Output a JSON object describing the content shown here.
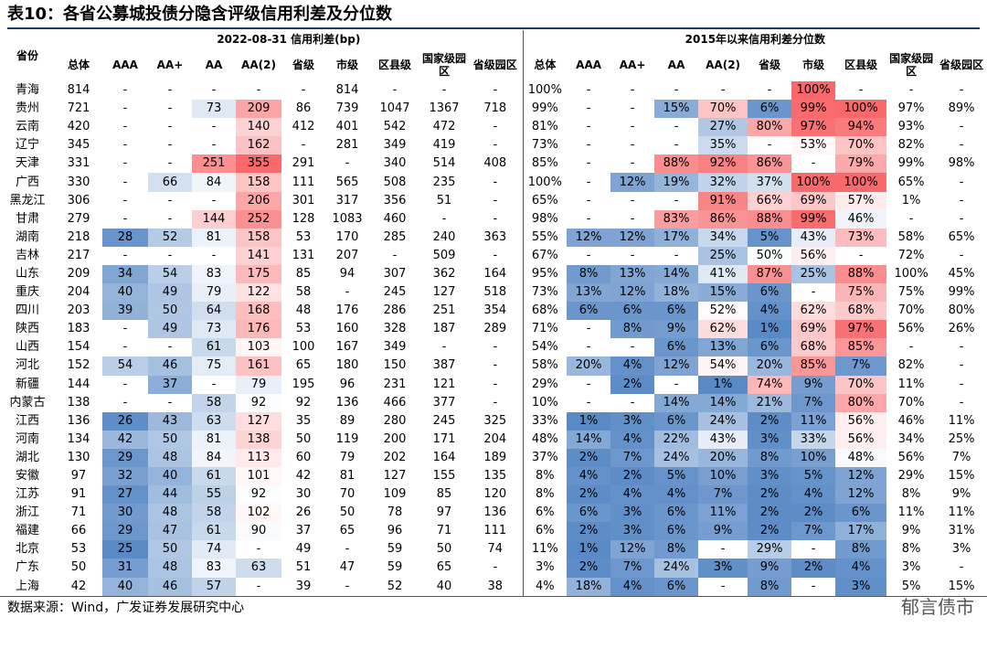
{
  "title": "表10：各省公募城投债分隐含评级信用利差及分位数",
  "table": {
    "corner": "省份",
    "group_headers": [
      "2022-08-31 信用利差(bp)",
      "2015年以来信用利差分位数"
    ],
    "columns": [
      "总体",
      "AAA",
      "AA+",
      "AA",
      "AA(2)",
      "省级",
      "市级",
      "区县级",
      "国家级园区",
      "省级园区",
      "总体",
      "AAA",
      "AA+",
      "AA",
      "AA(2)",
      "省级",
      "市级",
      "区县级",
      "国家级园区",
      "省级园区"
    ],
    "rows": [
      {
        "province": "青海",
        "cells": [
          "814",
          "-",
          "-",
          "-",
          "-",
          "-",
          "814",
          "-",
          "-",
          "-",
          "100%",
          "-",
          "-",
          "-",
          "-",
          "-",
          "100%",
          "-",
          "-",
          "-"
        ]
      },
      {
        "province": "贵州",
        "cells": [
          "721",
          "-",
          "-",
          "73",
          "209",
          "86",
          "739",
          "1047",
          "1367",
          "718",
          "99%",
          "-",
          "-",
          "15%",
          "70%",
          "6%",
          "99%",
          "100%",
          "97%",
          "89%"
        ]
      },
      {
        "province": "云南",
        "cells": [
          "420",
          "-",
          "-",
          "-",
          "140",
          "412",
          "401",
          "542",
          "472",
          "-",
          "81%",
          "-",
          "-",
          "-",
          "27%",
          "80%",
          "97%",
          "94%",
          "93%",
          "-"
        ]
      },
      {
        "province": "辽宁",
        "cells": [
          "345",
          "-",
          "-",
          "-",
          "162",
          "-",
          "281",
          "349",
          "419",
          "-",
          "73%",
          "-",
          "-",
          "-",
          "35%",
          "-",
          "53%",
          "70%",
          "82%",
          "-"
        ]
      },
      {
        "province": "天津",
        "cells": [
          "331",
          "-",
          "-",
          "251",
          "355",
          "291",
          "-",
          "340",
          "514",
          "408",
          "85%",
          "-",
          "-",
          "88%",
          "92%",
          "86%",
          "-",
          "79%",
          "99%",
          "98%"
        ]
      },
      {
        "province": "广西",
        "cells": [
          "330",
          "-",
          "66",
          "84",
          "158",
          "111",
          "565",
          "508",
          "235",
          "-",
          "100%",
          "-",
          "12%",
          "19%",
          "32%",
          "37%",
          "100%",
          "100%",
          "65%",
          "-"
        ]
      },
      {
        "province": "黑龙江",
        "cells": [
          "306",
          "-",
          "-",
          "-",
          "206",
          "301",
          "317",
          "356",
          "51",
          "-",
          "65%",
          "-",
          "-",
          "-",
          "91%",
          "66%",
          "69%",
          "57%",
          "1%",
          "-"
        ]
      },
      {
        "province": "甘肃",
        "cells": [
          "279",
          "-",
          "-",
          "144",
          "252",
          "128",
          "1083",
          "460",
          "-",
          "-",
          "98%",
          "-",
          "-",
          "83%",
          "86%",
          "88%",
          "99%",
          "46%",
          "-",
          "-"
        ]
      },
      {
        "province": "湖南",
        "cells": [
          "218",
          "28",
          "52",
          "81",
          "158",
          "53",
          "170",
          "285",
          "240",
          "363",
          "55%",
          "12%",
          "12%",
          "17%",
          "34%",
          "5%",
          "43%",
          "73%",
          "58%",
          "65%"
        ]
      },
      {
        "province": "吉林",
        "cells": [
          "217",
          "-",
          "-",
          "-",
          "141",
          "131",
          "207",
          "-",
          "509",
          "-",
          "67%",
          "-",
          "-",
          "-",
          "25%",
          "50%",
          "56%",
          "-",
          "72%",
          "-"
        ]
      },
      {
        "province": "山东",
        "cells": [
          "209",
          "34",
          "54",
          "83",
          "175",
          "85",
          "94",
          "307",
          "362",
          "164",
          "95%",
          "8%",
          "13%",
          "14%",
          "41%",
          "87%",
          "25%",
          "88%",
          "100%",
          "45%"
        ]
      },
      {
        "province": "重庆",
        "cells": [
          "204",
          "40",
          "49",
          "79",
          "122",
          "58",
          "-",
          "245",
          "127",
          "518",
          "73%",
          "13%",
          "12%",
          "18%",
          "15%",
          "6%",
          "-",
          "75%",
          "75%",
          "99%"
        ]
      },
      {
        "province": "四川",
        "cells": [
          "203",
          "39",
          "50",
          "64",
          "168",
          "48",
          "176",
          "286",
          "251",
          "354",
          "68%",
          "6%",
          "6%",
          "6%",
          "52%",
          "4%",
          "62%",
          "68%",
          "70%",
          "80%"
        ]
      },
      {
        "province": "陕西",
        "cells": [
          "183",
          "-",
          "49",
          "73",
          "176",
          "53",
          "160",
          "328",
          "187",
          "289",
          "71%",
          "-",
          "8%",
          "9%",
          "62%",
          "1%",
          "69%",
          "97%",
          "56%",
          "26%"
        ]
      },
      {
        "province": "山西",
        "cells": [
          "154",
          "-",
          "-",
          "61",
          "103",
          "100",
          "167",
          "349",
          "-",
          "-",
          "54%",
          "-",
          "-",
          "6%",
          "13%",
          "6%",
          "68%",
          "85%",
          "-",
          "-"
        ]
      },
      {
        "province": "河北",
        "cells": [
          "152",
          "54",
          "46",
          "75",
          "161",
          "65",
          "180",
          "150",
          "387",
          "-",
          "58%",
          "20%",
          "4%",
          "12%",
          "54%",
          "20%",
          "85%",
          "7%",
          "82%",
          "-"
        ]
      },
      {
        "province": "新疆",
        "cells": [
          "144",
          "-",
          "37",
          "-",
          "79",
          "195",
          "96",
          "231",
          "121",
          "-",
          "29%",
          "-",
          "2%",
          "-",
          "1%",
          "74%",
          "9%",
          "70%",
          "11%",
          "-"
        ]
      },
      {
        "province": "内蒙古",
        "cells": [
          "138",
          "-",
          "-",
          "58",
          "92",
          "92",
          "136",
          "466",
          "377",
          "-",
          "10%",
          "-",
          "-",
          "14%",
          "14%",
          "21%",
          "7%",
          "80%",
          "70%",
          "-"
        ]
      },
      {
        "province": "江西",
        "cells": [
          "136",
          "26",
          "43",
          "63",
          "127",
          "35",
          "89",
          "280",
          "245",
          "325",
          "33%",
          "1%",
          "3%",
          "6%",
          "24%",
          "2%",
          "11%",
          "56%",
          "46%",
          "11%"
        ]
      },
      {
        "province": "河南",
        "cells": [
          "134",
          "42",
          "50",
          "81",
          "138",
          "50",
          "119",
          "200",
          "171",
          "204",
          "48%",
          "14%",
          "4%",
          "22%",
          "43%",
          "3%",
          "33%",
          "56%",
          "34%",
          "25%"
        ]
      },
      {
        "province": "湖北",
        "cells": [
          "130",
          "29",
          "48",
          "84",
          "113",
          "60",
          "79",
          "202",
          "164",
          "189",
          "37%",
          "2%",
          "7%",
          "24%",
          "20%",
          "8%",
          "10%",
          "48%",
          "56%",
          "7%"
        ]
      },
      {
        "province": "安徽",
        "cells": [
          "97",
          "32",
          "40",
          "61",
          "101",
          "42",
          "81",
          "127",
          "155",
          "135",
          "8%",
          "4%",
          "2%",
          "5%",
          "10%",
          "3%",
          "5%",
          "12%",
          "29%",
          "15%"
        ]
      },
      {
        "province": "江苏",
        "cells": [
          "91",
          "27",
          "44",
          "55",
          "92",
          "30",
          "70",
          "109",
          "85",
          "120",
          "8%",
          "2%",
          "4%",
          "4%",
          "7%",
          "2%",
          "4%",
          "12%",
          "8%",
          "9%"
        ]
      },
      {
        "province": "浙江",
        "cells": [
          "71",
          "30",
          "48",
          "58",
          "102",
          "26",
          "50",
          "78",
          "97",
          "136",
          "6%",
          "6%",
          "3%",
          "6%",
          "11%",
          "2%",
          "2%",
          "6%",
          "11%",
          "11%"
        ]
      },
      {
        "province": "福建",
        "cells": [
          "66",
          "29",
          "47",
          "61",
          "90",
          "37",
          "65",
          "96",
          "71",
          "111",
          "6%",
          "2%",
          "3%",
          "6%",
          "9%",
          "2%",
          "7%",
          "17%",
          "9%",
          "31%"
        ]
      },
      {
        "province": "北京",
        "cells": [
          "53",
          "25",
          "50",
          "74",
          "-",
          "49",
          "-",
          "59",
          "50",
          "74",
          "11%",
          "1%",
          "12%",
          "8%",
          "-",
          "29%",
          "-",
          "8%",
          "8%",
          "3%"
        ]
      },
      {
        "province": "广东",
        "cells": [
          "50",
          "31",
          "48",
          "83",
          "63",
          "51",
          "47",
          "59",
          "65",
          "-",
          "3%",
          "2%",
          "7%",
          "24%",
          "3%",
          "9%",
          "2%",
          "4%",
          "3%",
          "-"
        ]
      },
      {
        "province": "上海",
        "cells": [
          "42",
          "40",
          "46",
          "57",
          "-",
          "39",
          "-",
          "52",
          "40",
          "38",
          "4%",
          "18%",
          "4%",
          "6%",
          "-",
          "8%",
          "-",
          "3%",
          "5%",
          "15%"
        ]
      }
    ]
  },
  "source": "数据来源：Wind，广发证券发展研究中心",
  "watermark": "郁言债市"
}
